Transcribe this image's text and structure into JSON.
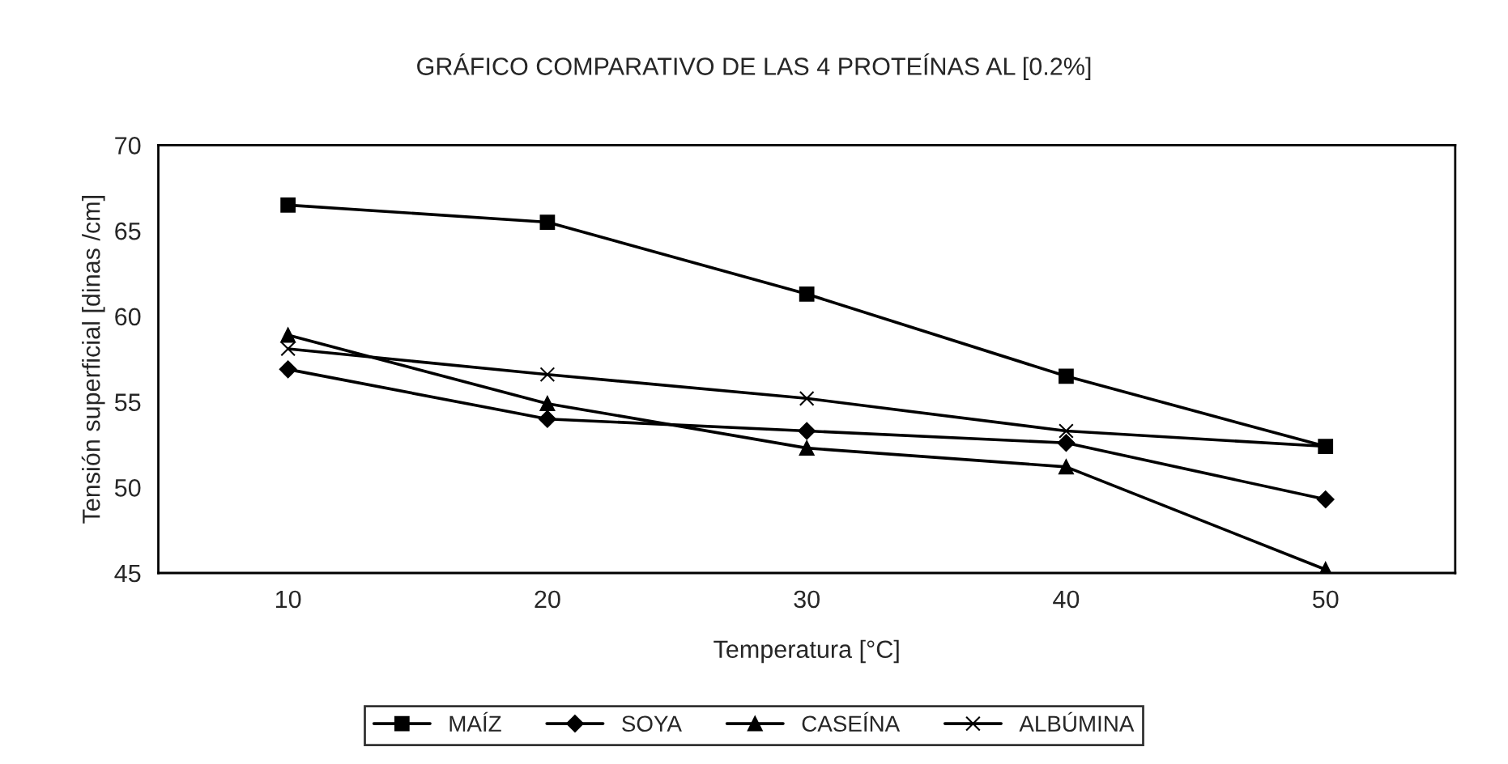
{
  "chart_data": {
    "type": "line",
    "title": "GRÁFICO COMPARATIVO DE LAS 4 PROTEÍNAS AL [0.2%]",
    "xlabel": "Temperatura [°C]",
    "ylabel": "Tensión superficial [dinas /cm]",
    "x": [
      10,
      20,
      30,
      40,
      50
    ],
    "series": [
      {
        "name": "MAÍZ",
        "color": "#000000",
        "marker": "square",
        "values": [
          66.5,
          65.5,
          61.3,
          56.5,
          52.4
        ]
      },
      {
        "name": "SOYA",
        "color": "#000000",
        "marker": "diamond",
        "values": [
          56.9,
          54.0,
          53.3,
          52.6,
          49.3
        ]
      },
      {
        "name": "CASEÍNA",
        "color": "#000000",
        "marker": "triangle",
        "values": [
          58.9,
          54.9,
          52.3,
          51.2,
          45.2
        ]
      },
      {
        "name": "ALBÚMINA",
        "color": "#000000",
        "marker": "cross",
        "values": [
          58.1,
          56.6,
          55.2,
          53.3,
          52.4
        ]
      }
    ],
    "xlim": [
      5,
      55
    ],
    "xticks": [
      10,
      20,
      30,
      40,
      50
    ],
    "ylim": [
      45,
      70
    ],
    "yticks": [
      45,
      50,
      55,
      60,
      65,
      70
    ],
    "grid": false,
    "legend": "bottom",
    "line_style": "solid"
  }
}
